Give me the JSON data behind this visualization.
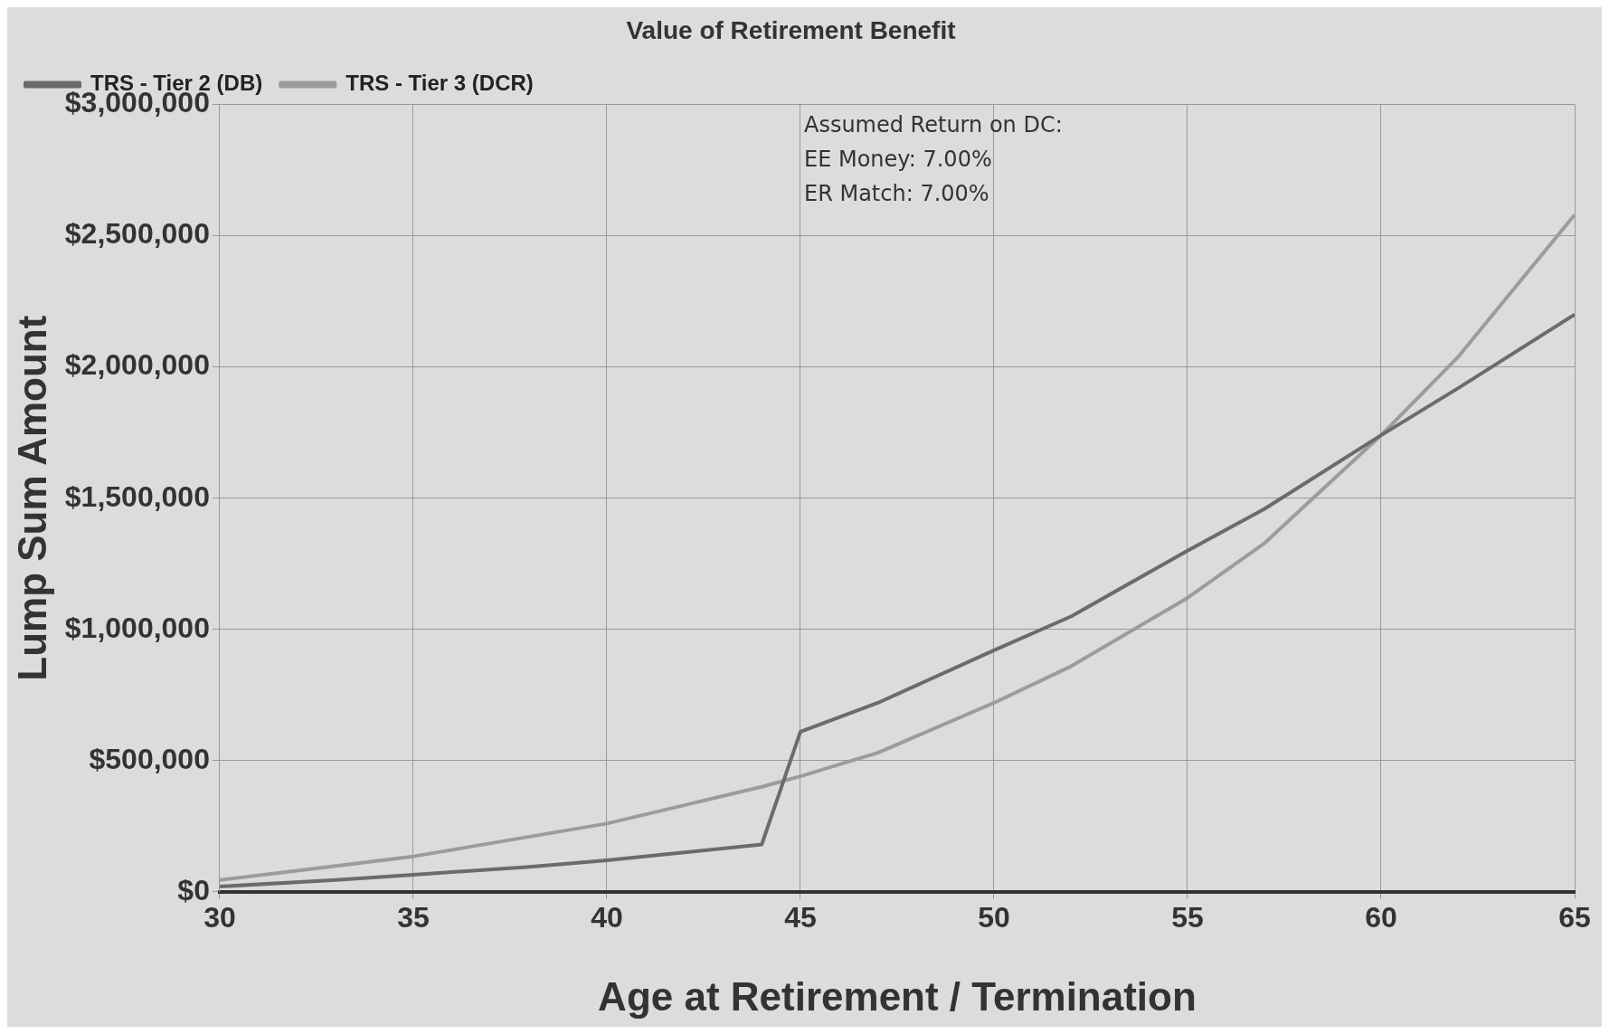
{
  "chart_data": {
    "type": "line",
    "title": "Value of Retirement Benefit",
    "xlabel": "Age at Retirement / Termination",
    "ylabel": "Lump Sum Amount",
    "series": [
      {
        "name": "TRS - Tier 2 (DB)",
        "color": "#6b6b6b",
        "x": [
          30,
          33,
          35,
          38,
          40,
          42,
          44,
          45,
          47,
          50,
          52,
          55,
          57,
          60,
          62,
          65
        ],
        "values": [
          20000,
          45000,
          65000,
          95000,
          120000,
          150000,
          180000,
          610000,
          720000,
          920000,
          1050000,
          1300000,
          1460000,
          1740000,
          1920000,
          2200000
        ]
      },
      {
        "name": "TRS - Tier 3 (DCR)",
        "color": "#9c9c9c",
        "x": [
          30,
          32,
          35,
          38,
          40,
          42,
          44,
          45,
          47,
          50,
          52,
          55,
          57,
          60,
          62,
          65
        ],
        "values": [
          45000,
          80000,
          135000,
          210000,
          260000,
          330000,
          400000,
          440000,
          530000,
          720000,
          860000,
          1120000,
          1330000,
          1740000,
          2040000,
          2580000
        ]
      }
    ],
    "xlim": [
      30,
      65
    ],
    "xticks": [
      30,
      35,
      40,
      45,
      50,
      55,
      60,
      65
    ],
    "ylim": [
      0,
      3000000
    ],
    "yticks": [
      {
        "value": 0,
        "label": "$0"
      },
      {
        "value": 500000,
        "label": "$500,000"
      },
      {
        "value": 1000000,
        "label": "$1,000,000"
      },
      {
        "value": 1500000,
        "label": "$1,500,000"
      },
      {
        "value": 2000000,
        "label": "$2,000,000"
      },
      {
        "value": 2500000,
        "label": "$2,500,000"
      },
      {
        "value": 3000000,
        "label": "$3,000,000"
      }
    ],
    "annotations": [
      "Assumed Return on DC:",
      "EE Money: 7.00%",
      "ER Match: 7.00%"
    ],
    "grid": true,
    "legend": "top left",
    "marker": "none",
    "line_style": "solid"
  }
}
